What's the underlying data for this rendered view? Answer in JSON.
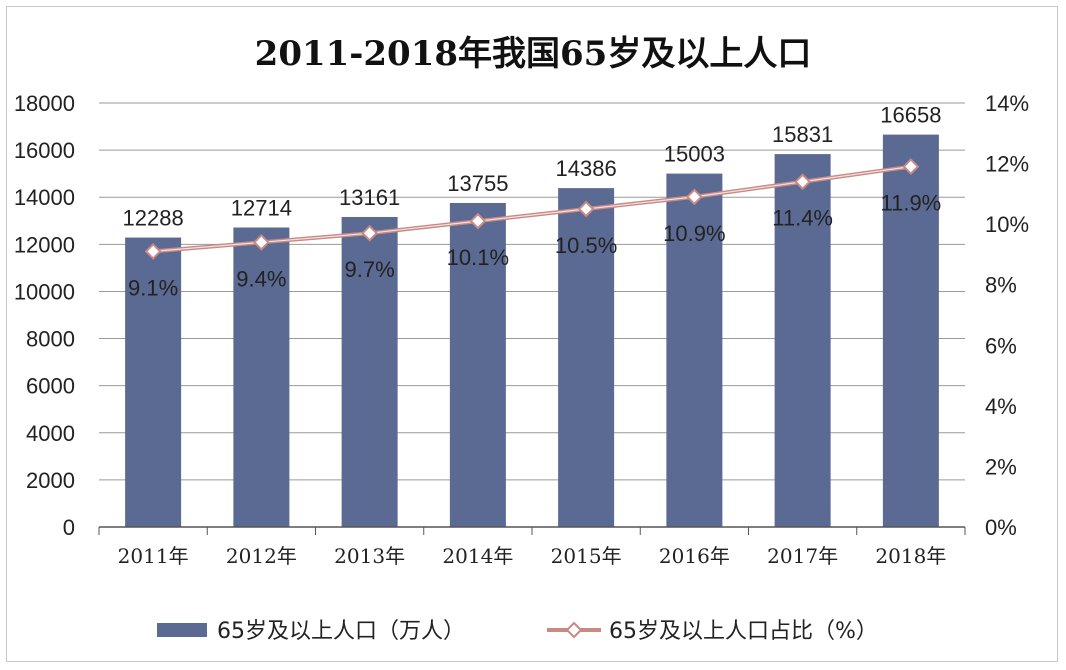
{
  "chart_data": {
    "type": "bar",
    "title": "2011-2018年我国65岁及以上人口",
    "categories": [
      "2011年",
      "2012年",
      "2013年",
      "2014年",
      "2015年",
      "2016年",
      "2017年",
      "2018年"
    ],
    "series": [
      {
        "name": "65岁及以上人口（万人）",
        "type": "bar",
        "axis": "left",
        "values": [
          12288,
          12714,
          13161,
          13755,
          14386,
          15003,
          15831,
          16658
        ],
        "labels": [
          "12288",
          "12714",
          "13161",
          "13755",
          "14386",
          "15003",
          "15831",
          "16658"
        ],
        "color": "#5b6a93"
      },
      {
        "name": "65岁及以上人口占比（%）",
        "type": "line",
        "axis": "right",
        "values": [
          9.1,
          9.4,
          9.7,
          10.1,
          10.5,
          10.9,
          11.4,
          11.9
        ],
        "labels": [
          "9.1%",
          "9.4%",
          "9.7%",
          "10.1%",
          "10.5%",
          "10.9%",
          "11.4%",
          "11.9%"
        ],
        "color": "#c98a86"
      }
    ],
    "y_left": {
      "ylim": [
        0,
        18000
      ],
      "ticks": [
        "0",
        "2000",
        "4000",
        "6000",
        "8000",
        "10000",
        "12000",
        "14000",
        "16000",
        "18000"
      ]
    },
    "y_right": {
      "ylim": [
        0,
        14
      ],
      "ticks": [
        "0%",
        "2%",
        "4%",
        "6%",
        "8%",
        "10%",
        "12%",
        "14%"
      ]
    },
    "grid": true,
    "legend_position": "bottom"
  }
}
